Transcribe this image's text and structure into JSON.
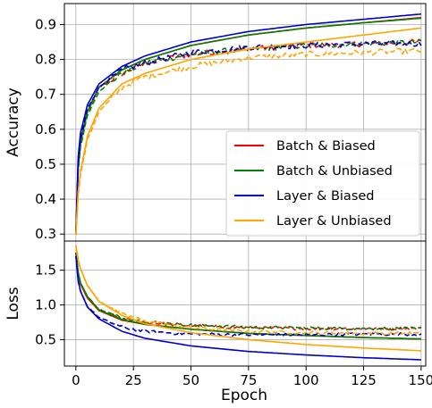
{
  "chart_data": [
    {
      "type": "line",
      "ylabel": "Accuracy",
      "xlim": [
        -5,
        152
      ],
      "ylim": [
        0.28,
        0.96
      ],
      "yticks": [
        0.3,
        0.4,
        0.5,
        0.6,
        0.7,
        0.8,
        0.9
      ],
      "ytick_labels": [
        "0.3",
        "0.4",
        "0.5",
        "0.6",
        "0.7",
        "0.8",
        "0.9"
      ],
      "grid": true,
      "legend_position": "lower-right",
      "legend": [
        "Batch & Biased",
        "Batch & Unbiased",
        "Layer & Biased",
        "Layer & Unbiased"
      ],
      "series": [
        {
          "name": "Batch & Biased",
          "color": "#ff0000",
          "style": "solid",
          "role": "train",
          "x": [
            0,
            1,
            2,
            5,
            10,
            20,
            30,
            50,
            75,
            100,
            125,
            150
          ],
          "y": [
            0.31,
            0.5,
            0.57,
            0.65,
            0.72,
            0.77,
            0.8,
            0.84,
            0.87,
            0.89,
            0.905,
            0.92
          ]
        },
        {
          "name": "Batch & Biased",
          "color": "#ff0000",
          "style": "dashed",
          "role": "validation",
          "x": [
            0,
            1,
            2,
            5,
            10,
            20,
            30,
            50,
            75,
            100,
            125,
            150
          ],
          "y": [
            0.31,
            0.49,
            0.56,
            0.65,
            0.72,
            0.76,
            0.79,
            0.815,
            0.83,
            0.84,
            0.845,
            0.85
          ]
        },
        {
          "name": "Batch & Unbiased",
          "color": "#008000",
          "style": "solid",
          "role": "train",
          "x": [
            0,
            1,
            2,
            5,
            10,
            20,
            30,
            50,
            75,
            100,
            125,
            150
          ],
          "y": [
            0.31,
            0.49,
            0.56,
            0.65,
            0.72,
            0.77,
            0.8,
            0.84,
            0.87,
            0.89,
            0.905,
            0.918
          ]
        },
        {
          "name": "Batch & Unbiased",
          "color": "#008000",
          "style": "dashed",
          "role": "validation",
          "x": [
            0,
            1,
            2,
            5,
            10,
            20,
            30,
            50,
            75,
            100,
            125,
            150
          ],
          "y": [
            0.31,
            0.48,
            0.55,
            0.64,
            0.71,
            0.76,
            0.79,
            0.815,
            0.83,
            0.84,
            0.845,
            0.85
          ]
        },
        {
          "name": "Layer & Biased",
          "color": "#0000cc",
          "style": "solid",
          "role": "train",
          "x": [
            0,
            1,
            2,
            5,
            10,
            20,
            30,
            50,
            75,
            100,
            125,
            150
          ],
          "y": [
            0.3,
            0.52,
            0.59,
            0.67,
            0.73,
            0.78,
            0.81,
            0.85,
            0.88,
            0.9,
            0.915,
            0.93
          ]
        },
        {
          "name": "Layer & Biased",
          "color": "#0000cc",
          "style": "dashed",
          "role": "validation",
          "x": [
            0,
            1,
            2,
            5,
            10,
            20,
            30,
            50,
            75,
            100,
            125,
            150
          ],
          "y": [
            0.3,
            0.5,
            0.57,
            0.66,
            0.72,
            0.77,
            0.79,
            0.82,
            0.835,
            0.84,
            0.845,
            0.845
          ]
        },
        {
          "name": "Layer & Unbiased",
          "color": "#ffa500",
          "style": "solid",
          "role": "train",
          "x": [
            0,
            1,
            2,
            5,
            10,
            20,
            30,
            50,
            75,
            100,
            125,
            150
          ],
          "y": [
            0.3,
            0.42,
            0.48,
            0.58,
            0.66,
            0.73,
            0.76,
            0.8,
            0.83,
            0.85,
            0.87,
            0.89
          ]
        },
        {
          "name": "Layer & Unbiased",
          "color": "#ffa500",
          "style": "dashed",
          "role": "validation",
          "x": [
            0,
            1,
            2,
            5,
            10,
            20,
            30,
            50,
            75,
            100,
            125,
            150
          ],
          "y": [
            0.3,
            0.41,
            0.47,
            0.57,
            0.65,
            0.72,
            0.75,
            0.78,
            0.805,
            0.815,
            0.82,
            0.825
          ]
        }
      ]
    },
    {
      "type": "line",
      "xlabel": "Epoch",
      "ylabel": "Loss",
      "xlim": [
        -5,
        152
      ],
      "ylim": [
        0.12,
        1.92
      ],
      "xticks": [
        0,
        25,
        50,
        75,
        100,
        125,
        150
      ],
      "xtick_labels": [
        "0",
        "25",
        "50",
        "75",
        "100",
        "125",
        "150"
      ],
      "yticks": [
        0.5,
        1.0,
        1.5
      ],
      "ytick_labels": [
        "0.5",
        "1.0",
        "1.5"
      ],
      "grid": true,
      "series": [
        {
          "name": "Batch & Biased",
          "color": "#ff0000",
          "style": "solid",
          "role": "train",
          "x": [
            0,
            1,
            2,
            5,
            10,
            20,
            30,
            50,
            75,
            100,
            125,
            150
          ],
          "y": [
            1.75,
            1.45,
            1.3,
            1.1,
            0.92,
            0.78,
            0.72,
            0.65,
            0.59,
            0.56,
            0.53,
            0.51
          ]
        },
        {
          "name": "Batch & Biased",
          "color": "#ff0000",
          "style": "dashed",
          "role": "validation",
          "x": [
            0,
            1,
            2,
            5,
            10,
            20,
            30,
            50,
            75,
            100,
            125,
            150
          ],
          "y": [
            1.75,
            1.45,
            1.3,
            1.1,
            0.92,
            0.8,
            0.75,
            0.7,
            0.67,
            0.66,
            0.66,
            0.66
          ]
        },
        {
          "name": "Batch & Unbiased",
          "color": "#008000",
          "style": "solid",
          "role": "train",
          "x": [
            0,
            1,
            2,
            5,
            10,
            20,
            30,
            50,
            75,
            100,
            125,
            150
          ],
          "y": [
            1.75,
            1.47,
            1.32,
            1.12,
            0.93,
            0.79,
            0.72,
            0.65,
            0.59,
            0.56,
            0.53,
            0.51
          ]
        },
        {
          "name": "Batch & Unbiased",
          "color": "#008000",
          "style": "dashed",
          "role": "validation",
          "x": [
            0,
            1,
            2,
            5,
            10,
            20,
            30,
            50,
            75,
            100,
            125,
            150
          ],
          "y": [
            1.75,
            1.47,
            1.32,
            1.12,
            0.94,
            0.81,
            0.76,
            0.71,
            0.68,
            0.67,
            0.66,
            0.66
          ]
        },
        {
          "name": "Layer & Biased",
          "color": "#0000cc",
          "style": "solid",
          "role": "train",
          "x": [
            0,
            1,
            2,
            5,
            10,
            20,
            30,
            50,
            75,
            100,
            125,
            150
          ],
          "y": [
            1.7,
            1.35,
            1.2,
            0.97,
            0.8,
            0.62,
            0.52,
            0.41,
            0.33,
            0.28,
            0.24,
            0.21
          ]
        },
        {
          "name": "Layer & Biased",
          "color": "#0000cc",
          "style": "dashed",
          "role": "validation",
          "x": [
            0,
            1,
            2,
            5,
            10,
            20,
            30,
            50,
            75,
            100,
            125,
            150
          ],
          "y": [
            1.7,
            1.35,
            1.2,
            0.98,
            0.82,
            0.68,
            0.62,
            0.58,
            0.57,
            0.57,
            0.58,
            0.58
          ]
        },
        {
          "name": "Layer & Unbiased",
          "color": "#ffa500",
          "style": "solid",
          "role": "train",
          "x": [
            0,
            1,
            2,
            5,
            10,
            20,
            30,
            50,
            75,
            100,
            125,
            150
          ],
          "y": [
            1.85,
            1.65,
            1.52,
            1.28,
            1.05,
            0.85,
            0.73,
            0.6,
            0.5,
            0.43,
            0.38,
            0.34
          ]
        },
        {
          "name": "Layer & Unbiased",
          "color": "#ffa500",
          "style": "dashed",
          "role": "validation",
          "x": [
            0,
            1,
            2,
            5,
            10,
            20,
            30,
            50,
            75,
            100,
            125,
            150
          ],
          "y": [
            1.85,
            1.65,
            1.52,
            1.28,
            1.06,
            0.87,
            0.77,
            0.67,
            0.62,
            0.6,
            0.59,
            0.59
          ]
        }
      ]
    }
  ]
}
